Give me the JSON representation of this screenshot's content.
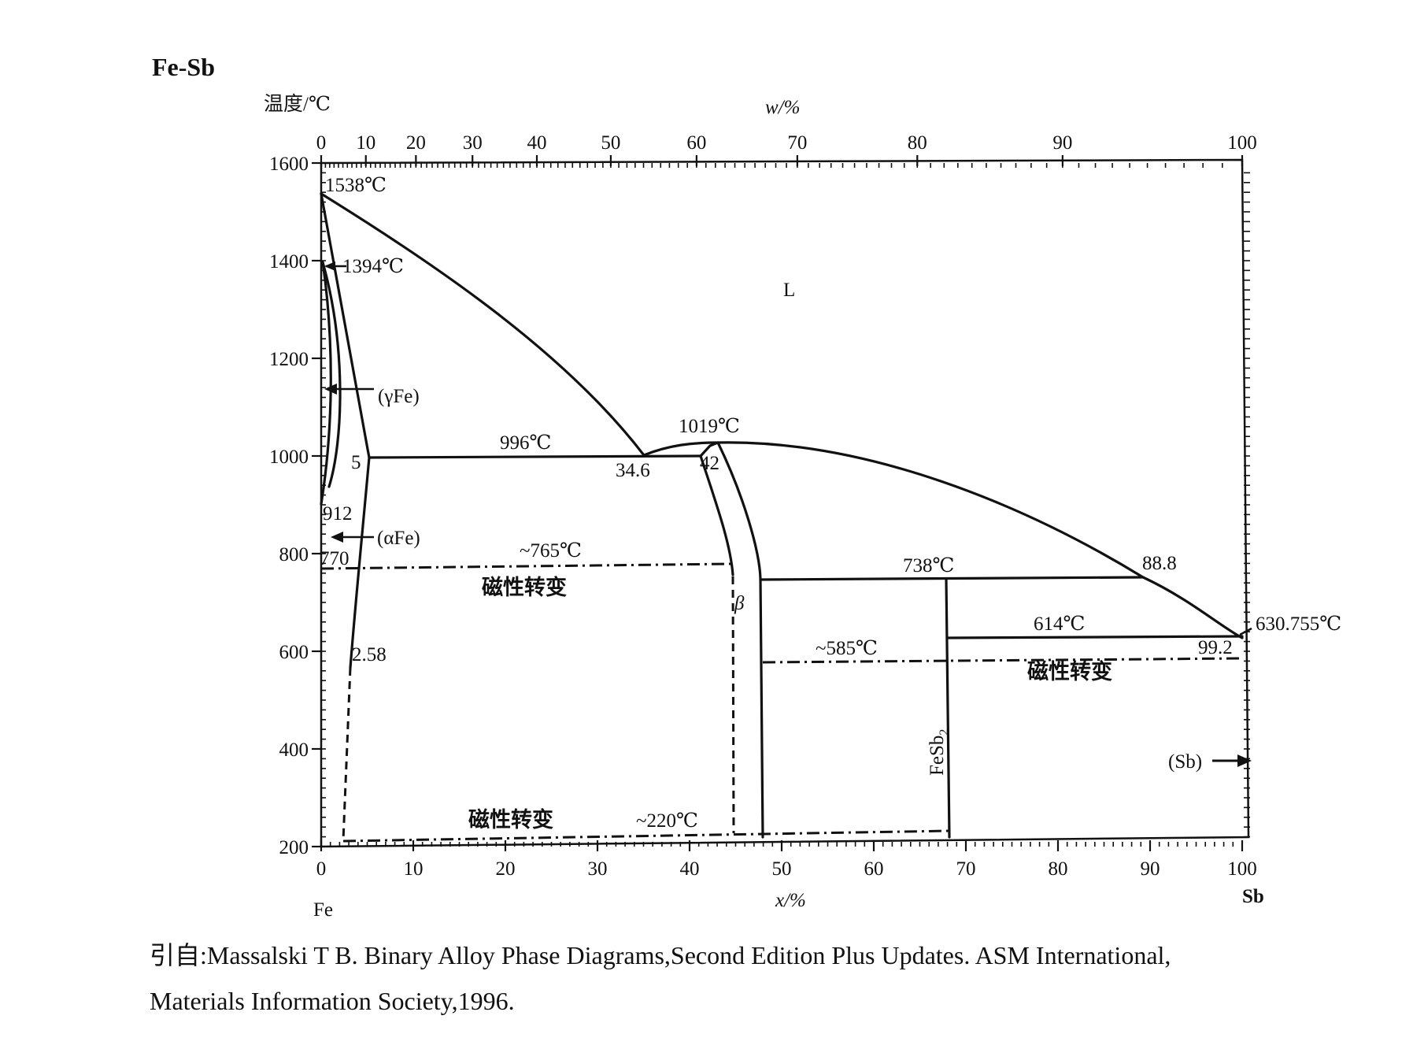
{
  "figure": {
    "title": "Fe-Sb",
    "temp_axis_label": "温度/℃",
    "top_axis_label": "w/%",
    "bottom_axis_label": "x/%",
    "left_element": "Fe",
    "right_element": "Sb"
  },
  "axes": {
    "temp_ticks": [
      1600,
      1400,
      1200,
      1000,
      800,
      600,
      400,
      200
    ],
    "bottom_ticks": [
      0,
      10,
      20,
      30,
      40,
      50,
      60,
      70,
      80,
      90,
      100
    ],
    "top_ticks": [
      0,
      10,
      20,
      30,
      40,
      50,
      60,
      70,
      80,
      90,
      100
    ]
  },
  "annotations": {
    "fe_melting": "1538℃",
    "fe_gamma_delta": "1394℃",
    "gamma_fe": "(γFe)",
    "alpha_fe": "(αFe)",
    "alpha_gamma": "912",
    "curie_fe": "770",
    "peritectic_temp": "996℃",
    "peritectic_sol": "5",
    "peritectic_liq": "34.6",
    "beta_max_temp": "1019℃",
    "beta_peritectic": "42",
    "magnetic_765": "~765℃",
    "magnetic_label_1": "磁性转变",
    "beta_phase": "β",
    "solvus_low": "2.58",
    "liquid": "L",
    "peritectic2_temp": "738℃",
    "peritectic2_liq": "88.8",
    "eutectic_temp": "614℃",
    "sb_melting": "630.755℃",
    "eutectic_comp": "99.2",
    "magnetic_585": "~585℃",
    "magnetic_label_2": "磁性转变",
    "fesb2": "FeSb",
    "fesb2_sub": "2",
    "sb_phase": "(Sb)",
    "magnetic_label_3": "磁性转变",
    "magnetic_220": "~220℃"
  },
  "caption": {
    "line1": "引自:Massalski T B.  Binary Alloy Phase Diagrams,Second Edition Plus Updates.  ASM International,",
    "line2": "Materials Information Society,1996."
  }
}
